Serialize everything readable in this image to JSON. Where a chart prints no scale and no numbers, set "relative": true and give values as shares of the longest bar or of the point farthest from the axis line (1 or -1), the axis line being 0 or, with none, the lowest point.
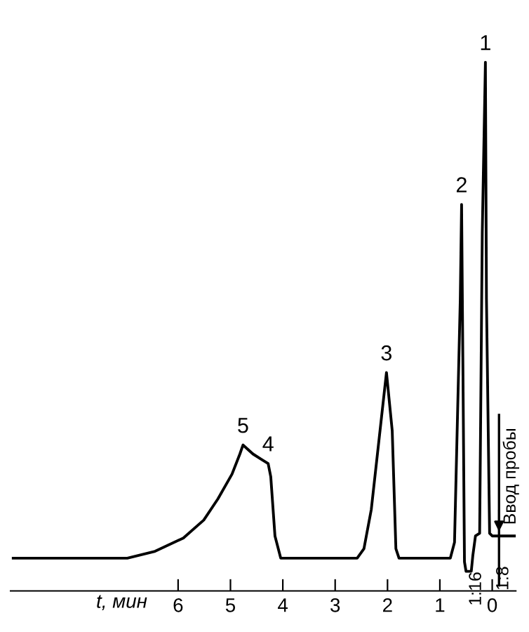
{
  "chart_data": {
    "type": "line",
    "relative": true,
    "xlabel": "t, мин",
    "x": [
      9.15,
      6.97,
      6.44,
      5.9,
      5.51,
      5.24,
      4.97,
      4.82,
      4.76,
      4.57,
      4.41,
      4.28,
      4.23,
      4.15,
      4.04,
      2.58,
      2.45,
      2.31,
      2.02,
      1.91,
      1.84,
      1.78,
      0.8,
      0.72,
      0.61,
      0.585,
      0.56,
      0.53,
      0.5,
      0.4,
      0.37,
      0.32,
      0.24,
      0.19,
      0.13,
      0.11,
      0.05,
      0.0,
      -0.43
    ],
    "series": [
      {
        "color": "#000000",
        "values": [
          0.062,
          0.062,
          0.075,
          0.1,
          0.134,
          0.174,
          0.221,
          0.259,
          0.276,
          0.259,
          0.249,
          0.241,
          0.216,
          0.104,
          0.062,
          0.062,
          0.08,
          0.154,
          0.413,
          0.303,
          0.08,
          0.062,
          0.062,
          0.092,
          0.552,
          0.731,
          0.428,
          0.055,
          0.037,
          0.037,
          0.067,
          0.104,
          0.109,
          0.677,
          1.0,
          0.552,
          0.109,
          0.104,
          0.104
        ]
      }
    ],
    "xlim": [
      9.2,
      -0.45
    ],
    "xticks": [
      6,
      5,
      4,
      3,
      2,
      1,
      0
    ],
    "annotations": [
      {
        "text": "1",
        "x": 0.13,
        "y": 1.0
      },
      {
        "text": "2",
        "x": 0.585,
        "y": 0.731
      },
      {
        "text": "3",
        "x": 2.02,
        "y": 0.413
      },
      {
        "text": "4",
        "x": 4.28,
        "y": 0.241
      },
      {
        "text": "5",
        "x": 4.76,
        "y": 0.276
      },
      "1:16",
      "1:8"
    ],
    "ref_lines": [
      {
        "axis": "x",
        "value": -0.13,
        "label": "Ввод пробы",
        "color": "#000000"
      }
    ],
    "grid": false,
    "marker": "none",
    "line_style": "solid"
  }
}
